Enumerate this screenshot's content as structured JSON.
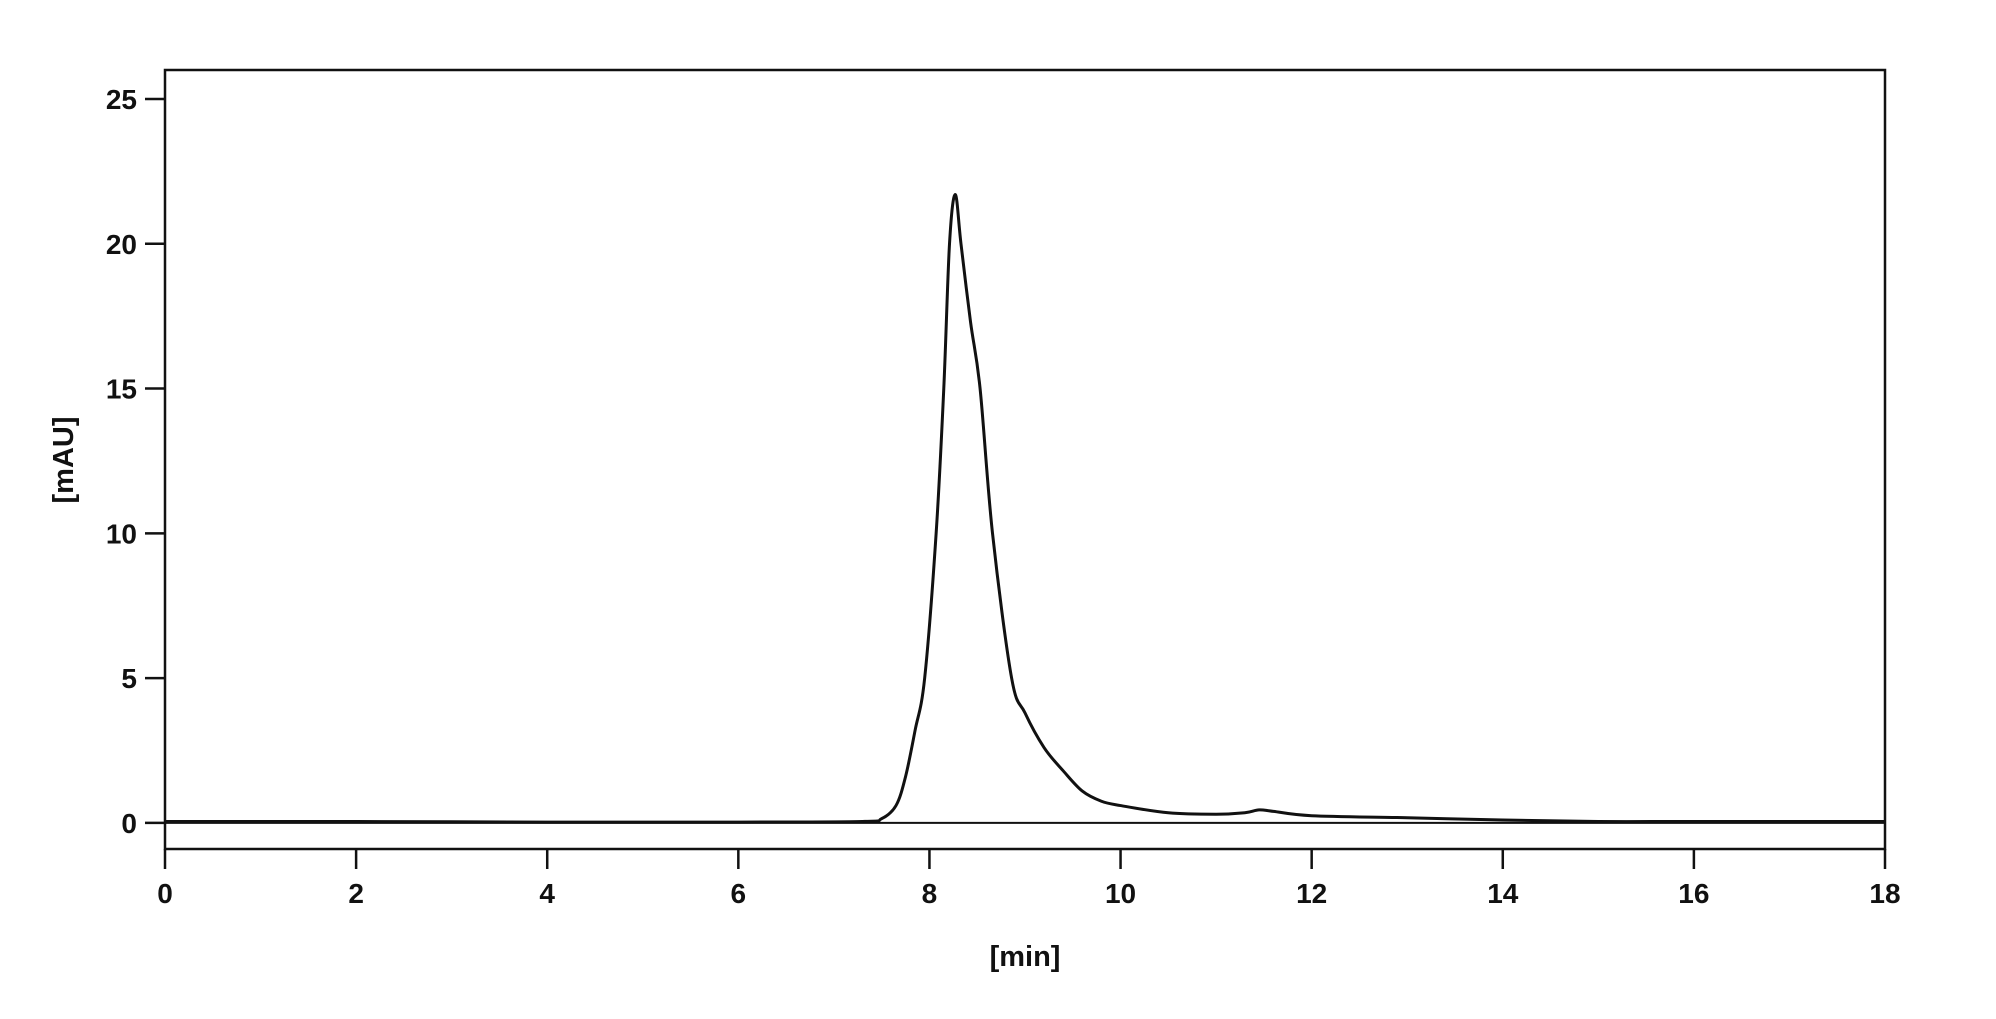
{
  "chart_data": {
    "type": "line",
    "title": "",
    "xlabel": "[min]",
    "ylabel": "[mAU]",
    "xlim": [
      0,
      18
    ],
    "ylim": [
      -0.9,
      26
    ],
    "xticks": [
      0,
      2,
      4,
      6,
      8,
      10,
      12,
      14,
      16,
      18
    ],
    "yticks": [
      0,
      5,
      10,
      15,
      20,
      25
    ],
    "grid": false,
    "line_color": "#111111",
    "series": [
      {
        "x": [
          0,
          2,
          4,
          6,
          7.3,
          7.5,
          7.65,
          7.75,
          7.85,
          7.95,
          8.07,
          8.15,
          8.21,
          8.27,
          8.33,
          8.43,
          8.53,
          8.66,
          8.86,
          9.0,
          9.2,
          9.4,
          9.6,
          9.8,
          10.0,
          10.5,
          11.0,
          11.3,
          11.45,
          11.6,
          12.0,
          13.0,
          14.0,
          15.0,
          16.0,
          18.0
        ],
        "y": [
          0.05,
          0.05,
          0.03,
          0.03,
          0.05,
          0.15,
          0.6,
          1.6,
          3.2,
          5.0,
          10.0,
          15.0,
          20.0,
          21.7,
          20.0,
          17.3,
          15.0,
          10.0,
          5.0,
          3.8,
          2.6,
          1.8,
          1.1,
          0.75,
          0.6,
          0.35,
          0.3,
          0.35,
          0.45,
          0.4,
          0.25,
          0.18,
          0.1,
          0.05,
          0.05,
          0.05
        ]
      }
    ]
  }
}
